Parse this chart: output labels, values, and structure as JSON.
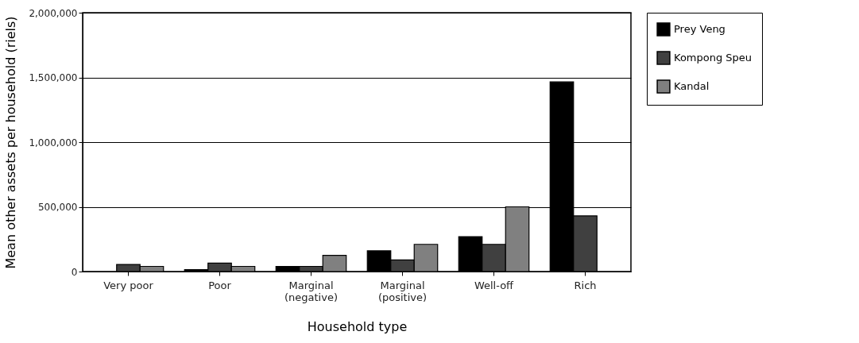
{
  "chart_data": {
    "type": "bar",
    "xlabel": "Household type",
    "ylabel": "Mean other assets per household (riels)",
    "categories": [
      "Very poor",
      "Poor",
      "Marginal (negative)",
      "Marginal (positive)",
      "Well-off",
      "Rich"
    ],
    "series": [
      {
        "name": "Prey Veng",
        "color": "#000000",
        "values": [
          null,
          15000,
          40000,
          160000,
          270000,
          1465000
        ]
      },
      {
        "name": "Kompong Speu",
        "color": "#404040",
        "values": [
          55000,
          65000,
          40000,
          90000,
          210000,
          430000
        ]
      },
      {
        "name": "Kandal",
        "color": "#808080",
        "values": [
          40000,
          40000,
          125000,
          210000,
          500000,
          null
        ]
      }
    ],
    "ylim": [
      0,
      2000000
    ],
    "yticks": [
      0,
      {
        "value": 500000,
        "label": "500,000"
      },
      {
        "value": 1000000,
        "label": "1,000,000"
      },
      {
        "value": 1500000,
        "label": "1,500,000"
      },
      {
        "value": 2000000,
        "label": "2,000,000"
      }
    ],
    "grid": "y",
    "legend": "right"
  }
}
